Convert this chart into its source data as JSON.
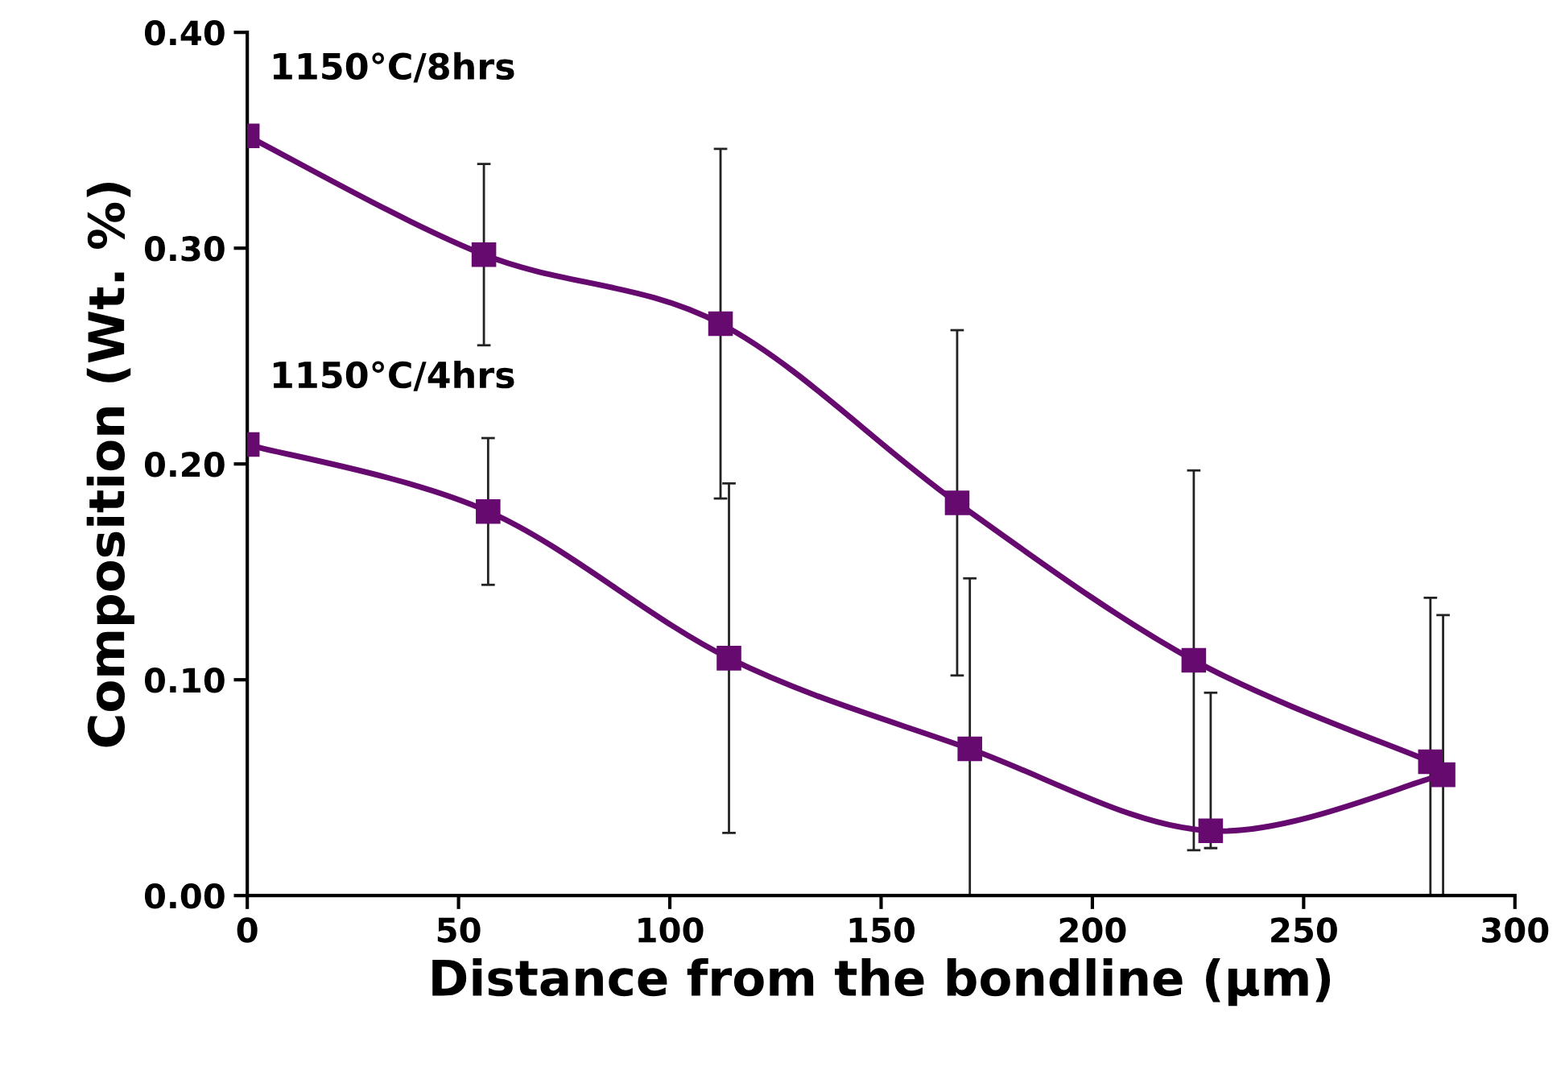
{
  "chart_data": {
    "type": "line",
    "xlabel": "Distance from the bondline (µm)",
    "ylabel": "Composition (Wt. %)",
    "series": [
      {
        "name": "1150°C/8hrs",
        "x": [
          0,
          56,
          112,
          168,
          224,
          280
        ],
        "values": [
          0.352,
          0.297,
          0.265,
          0.182,
          0.109,
          0.062
        ],
        "errors": [
          null,
          0.042,
          0.081,
          0.08,
          [
            0.021,
            0.197
          ],
          [
            0,
            0.138
          ]
        ],
        "color": "#660a70"
      },
      {
        "name": "1150°C/4hrs",
        "x": [
          0,
          57,
          114,
          171,
          228,
          283
        ],
        "values": [
          0.209,
          0.178,
          0.11,
          0.068,
          0.03,
          0.056
        ],
        "errors": [
          null,
          0.034,
          0.081,
          [
            0,
            0.147
          ],
          [
            0.022,
            0.094
          ],
          [
            0,
            0.13
          ]
        ],
        "color": "#660a70"
      }
    ],
    "marker": "square",
    "line_style": "solid",
    "grid": false,
    "legend": false,
    "xlim": [
      0,
      300
    ],
    "xticks": [
      0,
      50,
      100,
      150,
      200,
      250,
      300
    ],
    "ylim": [
      0,
      0.4
    ],
    "yticks": [
      {
        "value": 0,
        "label": "0.00"
      },
      {
        "value": 0.1,
        "label": "0.10"
      },
      {
        "value": 0.2,
        "label": "0.20"
      },
      {
        "value": 0.3,
        "label": "0.30"
      },
      {
        "value": 0.4,
        "label": "0.40"
      }
    ]
  }
}
